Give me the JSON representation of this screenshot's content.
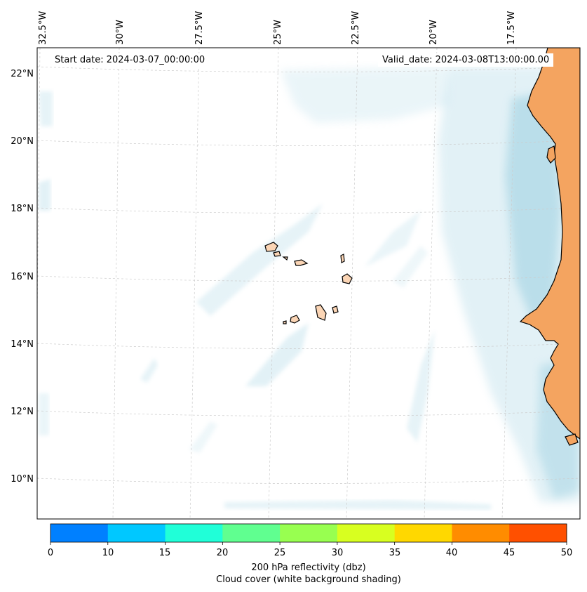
{
  "map": {
    "start_date": "Start date: 2024-03-07_00:00:00",
    "valid_date": "Valid_date: 2024-03-08T13:00:00.00",
    "lon_labels": [
      "32.5°W",
      "30°W",
      "27.5°W",
      "25°W",
      "22.5°W",
      "20°W",
      "17.5°W"
    ],
    "lat_labels": [
      "22°N",
      "20°N",
      "18°N",
      "16°N",
      "14°N",
      "12°N",
      "10°N"
    ],
    "land_color": "#f4a460",
    "island_color": "#fbd5b5",
    "cloud_color": "#add8e6"
  },
  "colorbar": {
    "ticks": [
      "0",
      "10",
      "15",
      "20",
      "25",
      "30",
      "35",
      "40",
      "45",
      "50"
    ],
    "colors": [
      "#0080ff",
      "#00c8ff",
      "#20ffd8",
      "#60ff90",
      "#98ff50",
      "#d8ff20",
      "#ffd800",
      "#ff8c00",
      "#ff5000"
    ],
    "label_line1": "200 hPa reflectivity (dbz)",
    "label_line2": "Cloud cover (white background shading)"
  }
}
